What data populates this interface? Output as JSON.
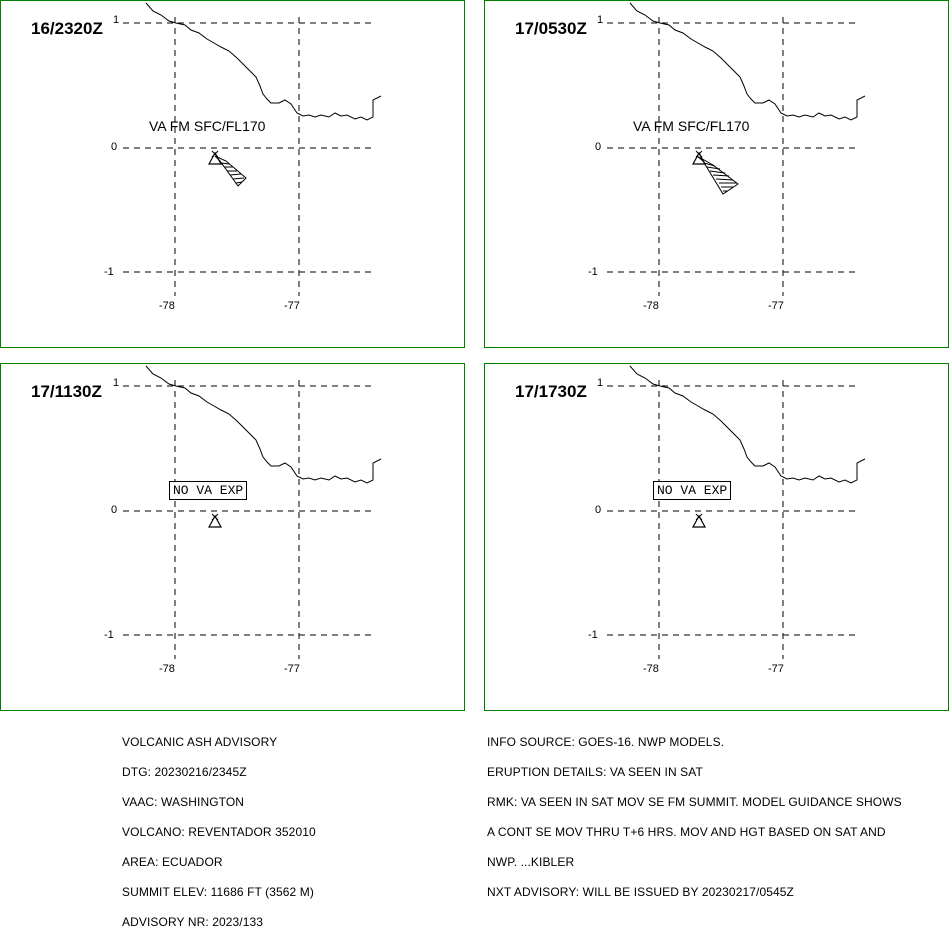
{
  "panels": [
    {
      "time": "16/2320Z",
      "label": "VA FM SFC/FL170",
      "label_type": "plain",
      "ash": "small"
    },
    {
      "time": "17/0530Z",
      "label": "VA FM SFC/FL170",
      "label_type": "plain",
      "ash": "large"
    },
    {
      "time": "17/1130Z",
      "label": "NO VA EXP",
      "label_type": "box",
      "ash": "none"
    },
    {
      "time": "17/1730Z",
      "label": "NO VA EXP",
      "label_type": "box",
      "ash": "none"
    }
  ],
  "axes": {
    "lat_labels": [
      "1",
      "0",
      "-1"
    ],
    "lon_labels": [
      "-78",
      "-77"
    ]
  },
  "advisory_left": [
    "VOLCANIC ASH ADVISORY",
    "DTG: 20230216/2345Z",
    "VAAC: WASHINGTON",
    "VOLCANO: REVENTADOR 352010",
    "AREA: ECUADOR",
    "SUMMIT ELEV: 11686 FT (3562 M)",
    "ADVISORY NR: 2023/133"
  ],
  "advisory_right": [
    "INFO SOURCE: GOES-16. NWP MODELS.",
    "ERUPTION DETAILS: VA SEEN IN SAT",
    "RMK: VA SEEN IN SAT MOV SE FM SUMMIT. MODEL GUIDANCE SHOWS",
    "A CONT SE MOV THRU T+6 HRS. MOV AND HGT BASED ON SAT AND",
    "NWP. ...KIBLER",
    "NXT ADVISORY: WILL BE ISSUED BY 20230217/0545Z"
  ],
  "colors": {
    "panel_border": "#008000",
    "lines": "#000000"
  }
}
